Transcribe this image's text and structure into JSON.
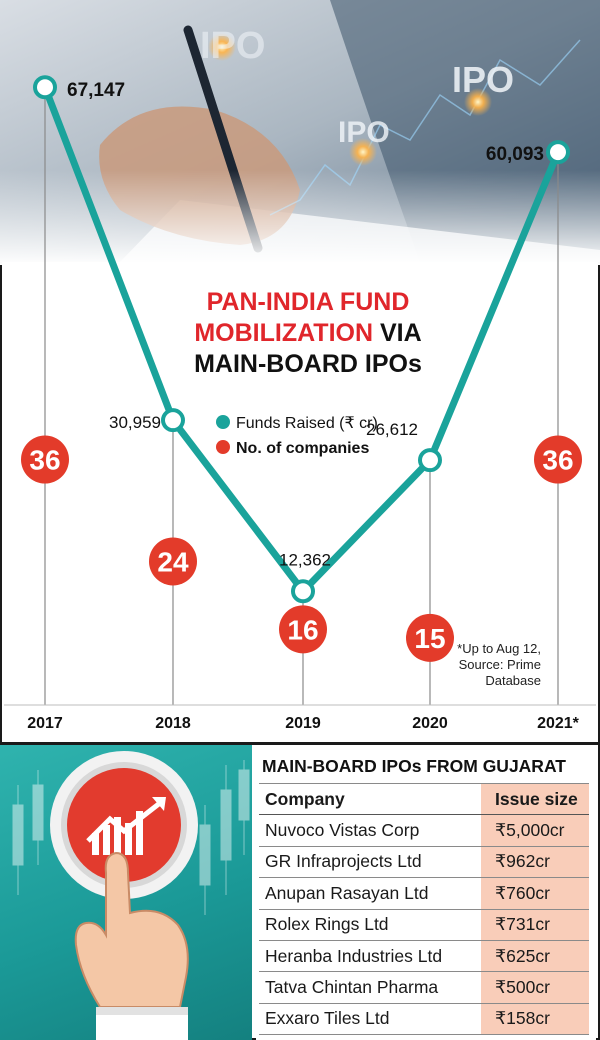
{
  "chart_data": {
    "type": "line",
    "title": [
      "PAN-INDIA FUND",
      "MOBILIZATION VIA",
      "MAIN-BOARD IPOs"
    ],
    "categories": [
      "2017",
      "2018",
      "2019",
      "2020",
      "2021*"
    ],
    "series": [
      {
        "name": "Funds Raised (₹ cr)",
        "values": [
          67147,
          30959,
          12362,
          26612,
          60093
        ],
        "labels": [
          "67,147",
          "30,959",
          "12,362",
          "26,612",
          "60,093"
        ]
      },
      {
        "name": "No. of companies",
        "values": [
          36,
          24,
          16,
          15,
          36
        ]
      }
    ],
    "ylim": [
      0,
      70000
    ],
    "note": [
      "*Up to Aug 12,",
      "Source: Prime",
      "Database"
    ]
  },
  "photo_words": [
    "IPO",
    "IPO",
    "IPO"
  ],
  "table": {
    "title": "MAIN-BOARD IPOs FROM GUJARAT",
    "headers": [
      "Company",
      "Issue size"
    ],
    "rows": [
      [
        "Nuvoco Vistas Corp",
        "₹5,000cr"
      ],
      [
        "GR Infraprojects Ltd",
        "₹962cr"
      ],
      [
        "Anupan Rasayan Ltd",
        "₹760cr"
      ],
      [
        "Rolex Rings Ltd",
        "₹731cr"
      ],
      [
        "Heranba Industries Ltd",
        "₹625cr"
      ],
      [
        "Tatva Chintan Pharma",
        "₹500cr"
      ],
      [
        "Exxaro Tiles Ltd",
        "₹158cr"
      ]
    ]
  },
  "colors": {
    "teal": "#1aa39b",
    "red": "#e33b2a",
    "title_red": "#e0262b",
    "title_dark": "#111111",
    "issue_bg": "#f9cdb9",
    "axis_line": "#8a8a8a"
  }
}
